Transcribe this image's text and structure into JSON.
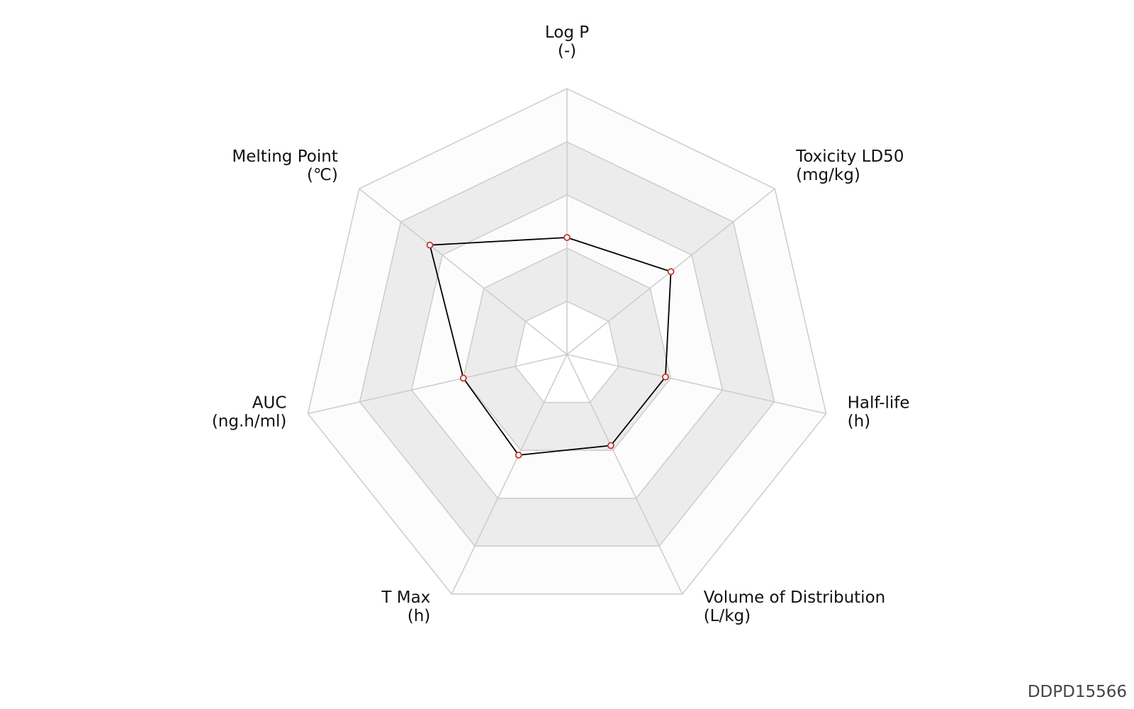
{
  "chart_data": {
    "type": "radar",
    "categories": [
      "Log P",
      "Toxicity LD50",
      "Half-life",
      "Volume of Distribution",
      "T Max",
      "AUC",
      "Melting Point"
    ],
    "units": [
      "(-)",
      "(mg/kg)",
      "(h)",
      "(L/kg)",
      "(h)",
      "(ng.h/ml)",
      "(℃)"
    ],
    "values": [
      2.2,
      2.5,
      1.9,
      1.9,
      2.1,
      2.0,
      3.3
    ],
    "rlim": [
      0,
      5
    ],
    "rticks": [
      1,
      2,
      3,
      4,
      5
    ],
    "line_color": "#000000",
    "marker_color": "#c0392b",
    "band_colors": [
      "#ffffff",
      "#ececec",
      "#fcfcfc"
    ],
    "grid_color": "#cccccc"
  },
  "watermark": "DDPD15566"
}
